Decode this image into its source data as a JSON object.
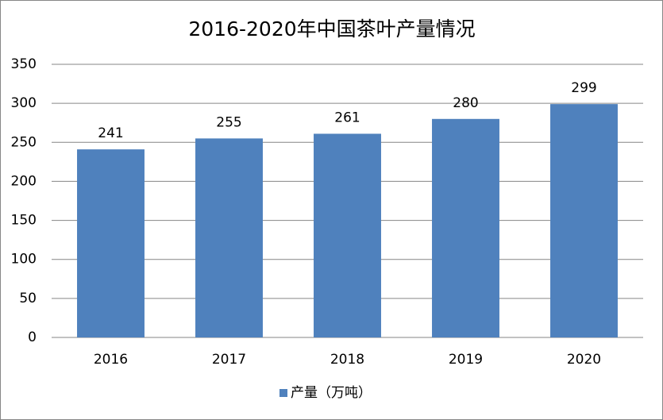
{
  "chart_data": {
    "type": "bar",
    "title": "2016-2020年中国茶叶产量情况",
    "categories": [
      "2016",
      "2017",
      "2018",
      "2019",
      "2020"
    ],
    "series": [
      {
        "name": "产量（万吨）",
        "color": "#4f81bd",
        "values": [
          241,
          255,
          261,
          280,
          299
        ]
      }
    ],
    "ylim": [
      0,
      350
    ],
    "yticks": [
      0,
      50,
      100,
      150,
      200,
      250,
      300,
      350
    ],
    "grid": true,
    "legend": "bottom"
  }
}
